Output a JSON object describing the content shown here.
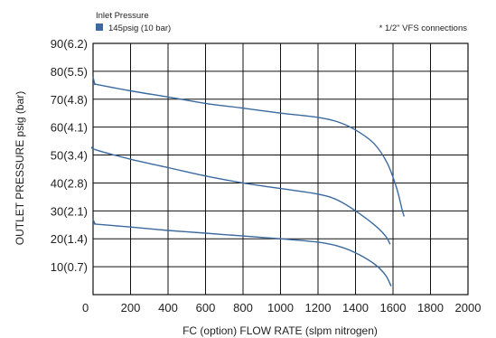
{
  "chart_data": {
    "type": "line",
    "title": "",
    "legend": {
      "title": "Inlet Pressure",
      "placement": "top-left",
      "entries": [
        {
          "label": "145psig (10 bar)",
          "color": "#3b6aa0"
        }
      ]
    },
    "note": "* 1/2\" VFS connections",
    "xlabel": "FC (option) FLOW RATE (slpm nitrogen)",
    "ylabel": "OUTLET PRESSURE psig (bar)",
    "xlim": [
      0,
      2000
    ],
    "ylim": [
      0,
      90
    ],
    "grid": true,
    "xticks": [
      {
        "value": 0,
        "label": "0"
      },
      {
        "value": 200,
        "label": "200"
      },
      {
        "value": 400,
        "label": "400"
      },
      {
        "value": 600,
        "label": "600"
      },
      {
        "value": 800,
        "label": "800"
      },
      {
        "value": 1000,
        "label": "1000"
      },
      {
        "value": 1200,
        "label": "1200"
      },
      {
        "value": 1400,
        "label": "1400"
      },
      {
        "value": 1600,
        "label": "1600"
      },
      {
        "value": 1800,
        "label": "1800"
      },
      {
        "value": 2000,
        "label": "2000"
      }
    ],
    "yticks": [
      {
        "value": 10,
        "label": "10(0.7)"
      },
      {
        "value": 20,
        "label": "20(1.4)"
      },
      {
        "value": 30,
        "label": "30(2.1)"
      },
      {
        "value": 40,
        "label": "40(2.8)"
      },
      {
        "value": 50,
        "label": "50(3.4)"
      },
      {
        "value": 60,
        "label": "60(4.1)"
      },
      {
        "value": 70,
        "label": "70(4.8)"
      },
      {
        "value": 80,
        "label": "80(5.5)"
      },
      {
        "value": 90,
        "label": "90(6.2)"
      }
    ],
    "series": [
      {
        "color": "#3b6aa0",
        "points": [
          [
            0,
            78
          ],
          [
            10,
            75.5
          ],
          [
            25,
            75.2
          ],
          [
            200,
            73
          ],
          [
            400,
            70.8
          ],
          [
            600,
            68.5
          ],
          [
            800,
            66.8
          ],
          [
            1000,
            65
          ],
          [
            1200,
            63.5
          ],
          [
            1300,
            62
          ],
          [
            1400,
            59
          ],
          [
            1500,
            54
          ],
          [
            1570,
            47
          ],
          [
            1620,
            38
          ],
          [
            1650,
            30
          ],
          [
            1660,
            28
          ]
        ]
      },
      {
        "color": "#3b6aa0",
        "points": [
          [
            0,
            53
          ],
          [
            10,
            52
          ],
          [
            200,
            48.5
          ],
          [
            400,
            45.5
          ],
          [
            600,
            42.5
          ],
          [
            800,
            40
          ],
          [
            1000,
            38
          ],
          [
            1200,
            36
          ],
          [
            1300,
            34
          ],
          [
            1400,
            30
          ],
          [
            1500,
            25
          ],
          [
            1560,
            21
          ],
          [
            1585,
            18
          ]
        ]
      },
      {
        "color": "#3b6aa0",
        "points": [
          [
            0,
            27
          ],
          [
            10,
            25.5
          ],
          [
            25,
            25.2
          ],
          [
            200,
            24.2
          ],
          [
            400,
            23
          ],
          [
            600,
            22
          ],
          [
            800,
            21
          ],
          [
            1000,
            20
          ],
          [
            1200,
            18.8
          ],
          [
            1300,
            17.5
          ],
          [
            1400,
            15
          ],
          [
            1500,
            11
          ],
          [
            1560,
            7
          ],
          [
            1590,
            3
          ]
        ]
      }
    ]
  }
}
